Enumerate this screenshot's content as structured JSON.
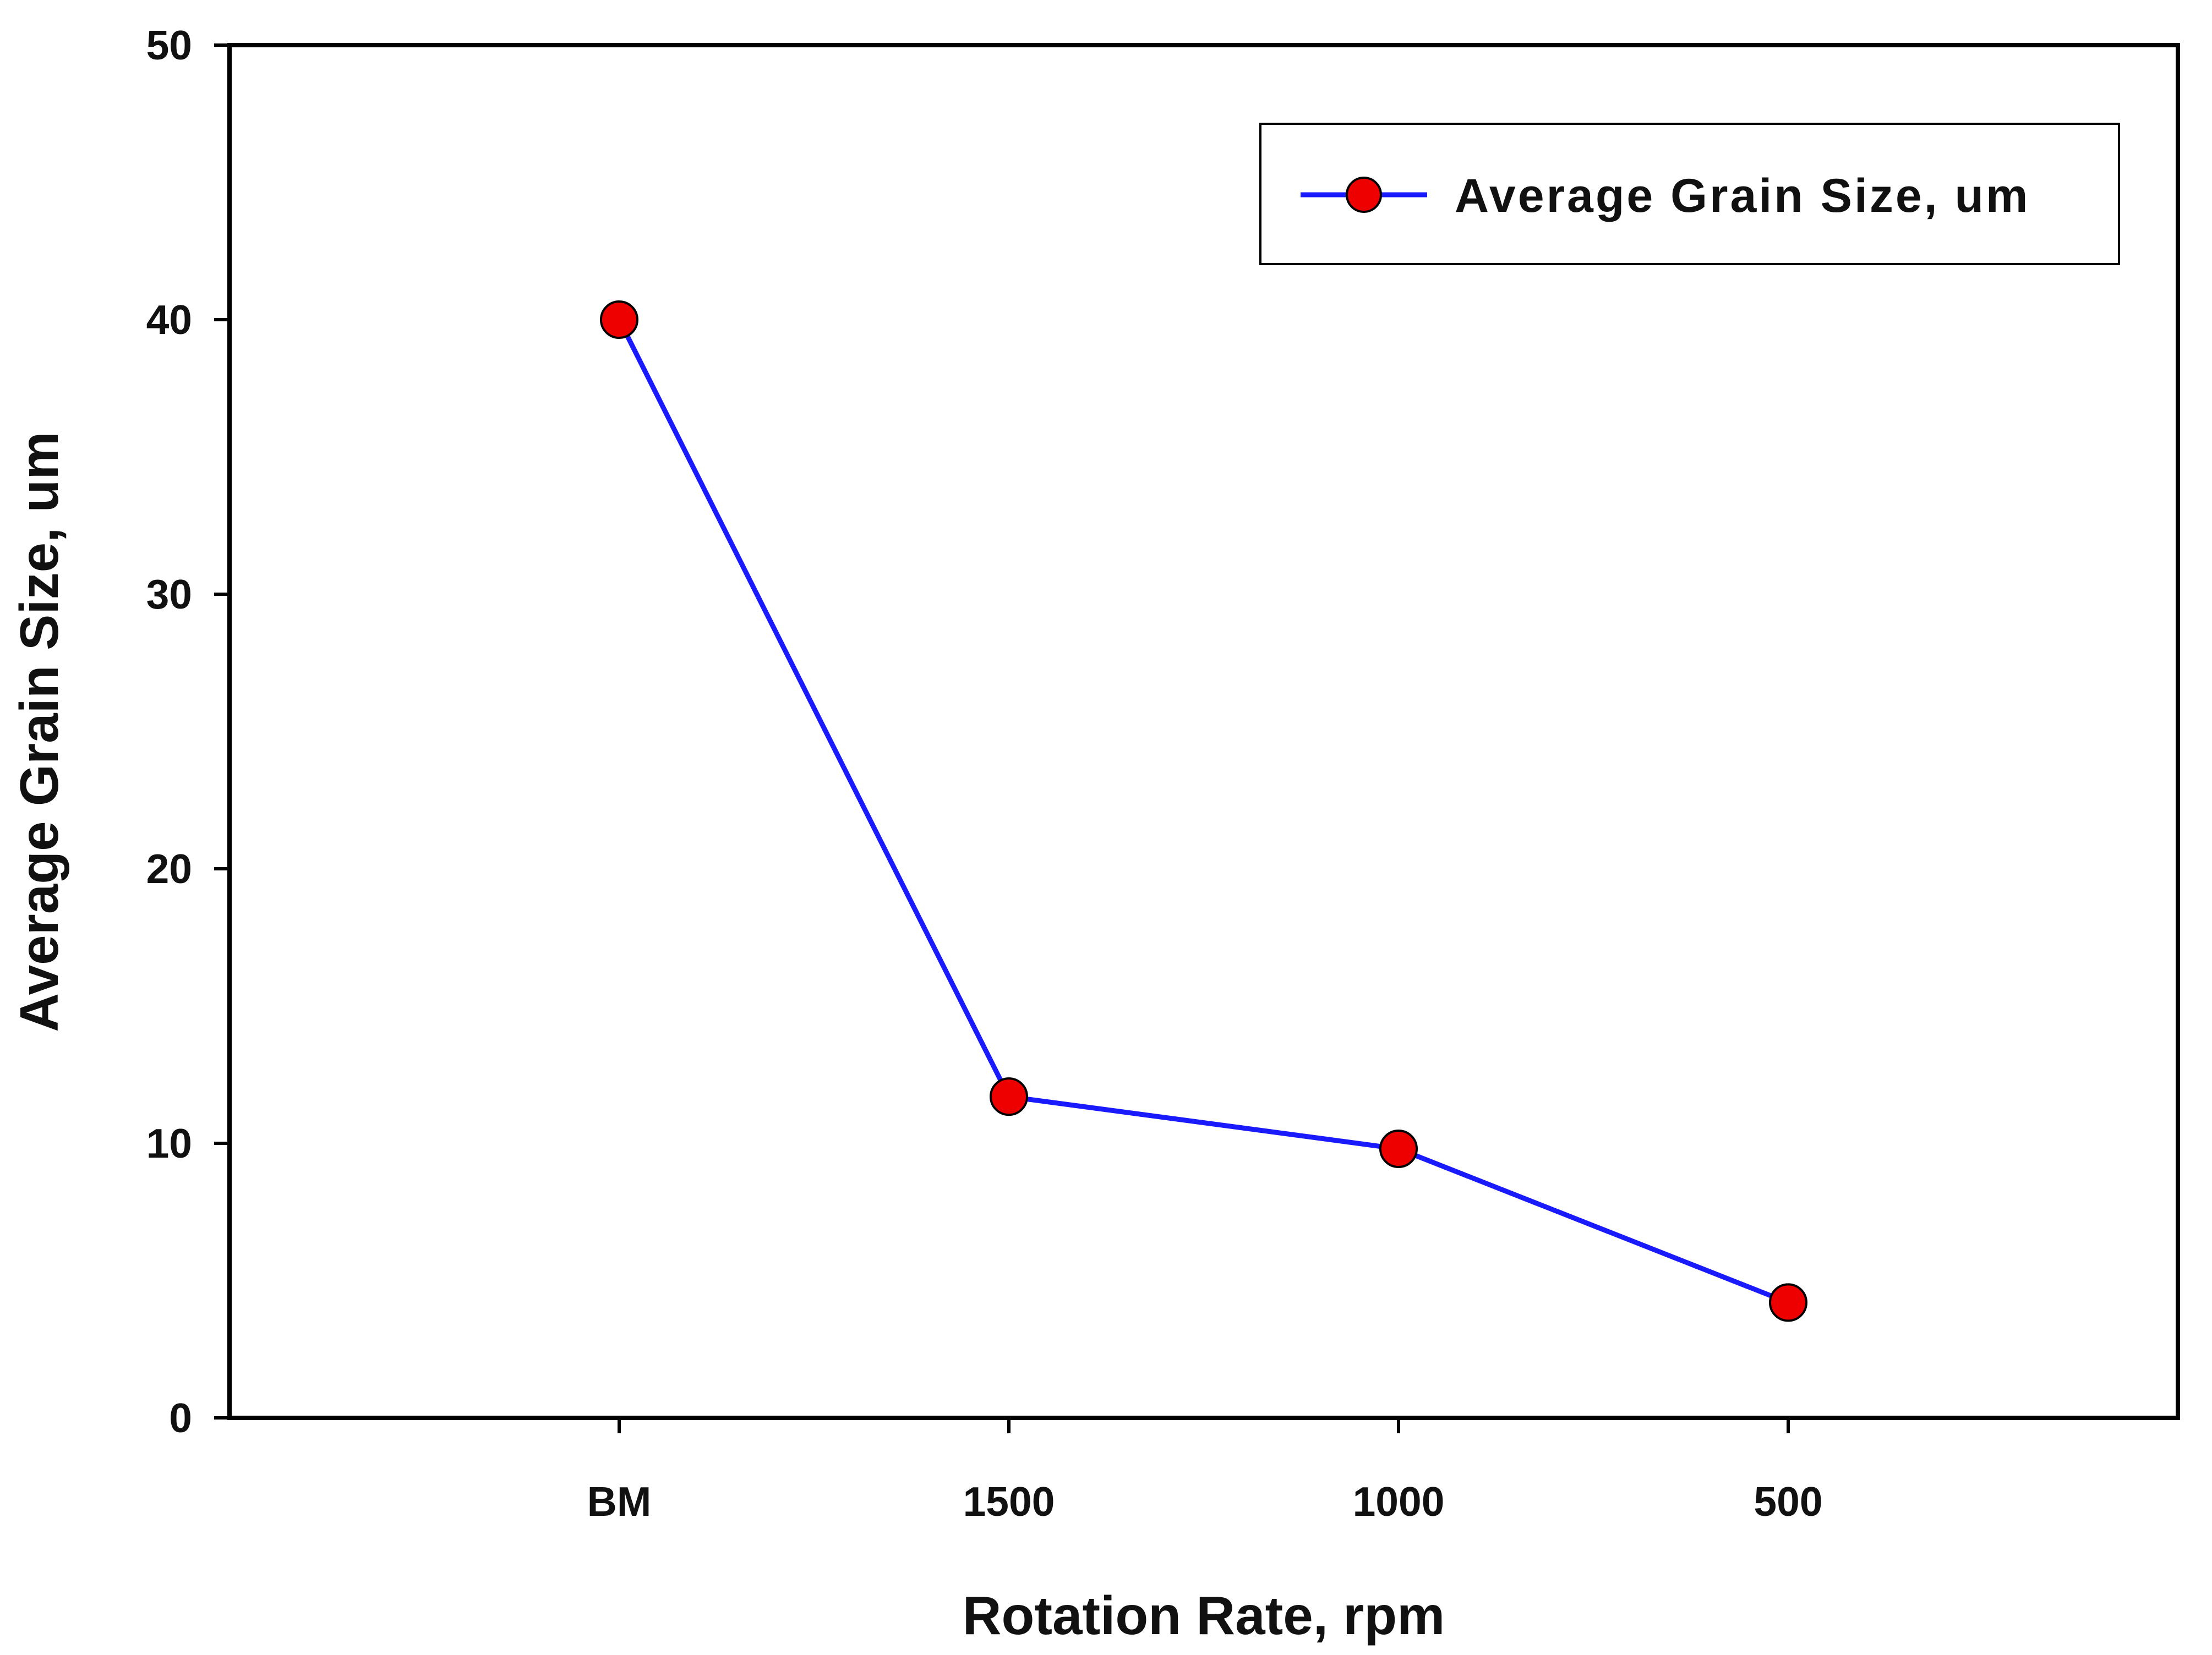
{
  "chart_data": {
    "type": "line",
    "title": "",
    "categories": [
      "BM",
      "1500",
      "1000",
      "500"
    ],
    "series": [
      {
        "name": "Average Grain Size, um",
        "values": [
          40,
          11.7,
          9.8,
          4.2
        ],
        "line_color": "#1a1aff",
        "marker_color": "#ee0000",
        "marker": "circle"
      }
    ],
    "xlabel": "Rotation Rate, rpm",
    "ylabel": "Average Grain Size, um",
    "ylim": [
      0,
      50
    ],
    "yticks": [
      "0",
      "10",
      "20",
      "30",
      "40",
      "50"
    ],
    "grid": false,
    "legend": {
      "position": "top-right",
      "label": "Average Grain Size, um"
    }
  }
}
